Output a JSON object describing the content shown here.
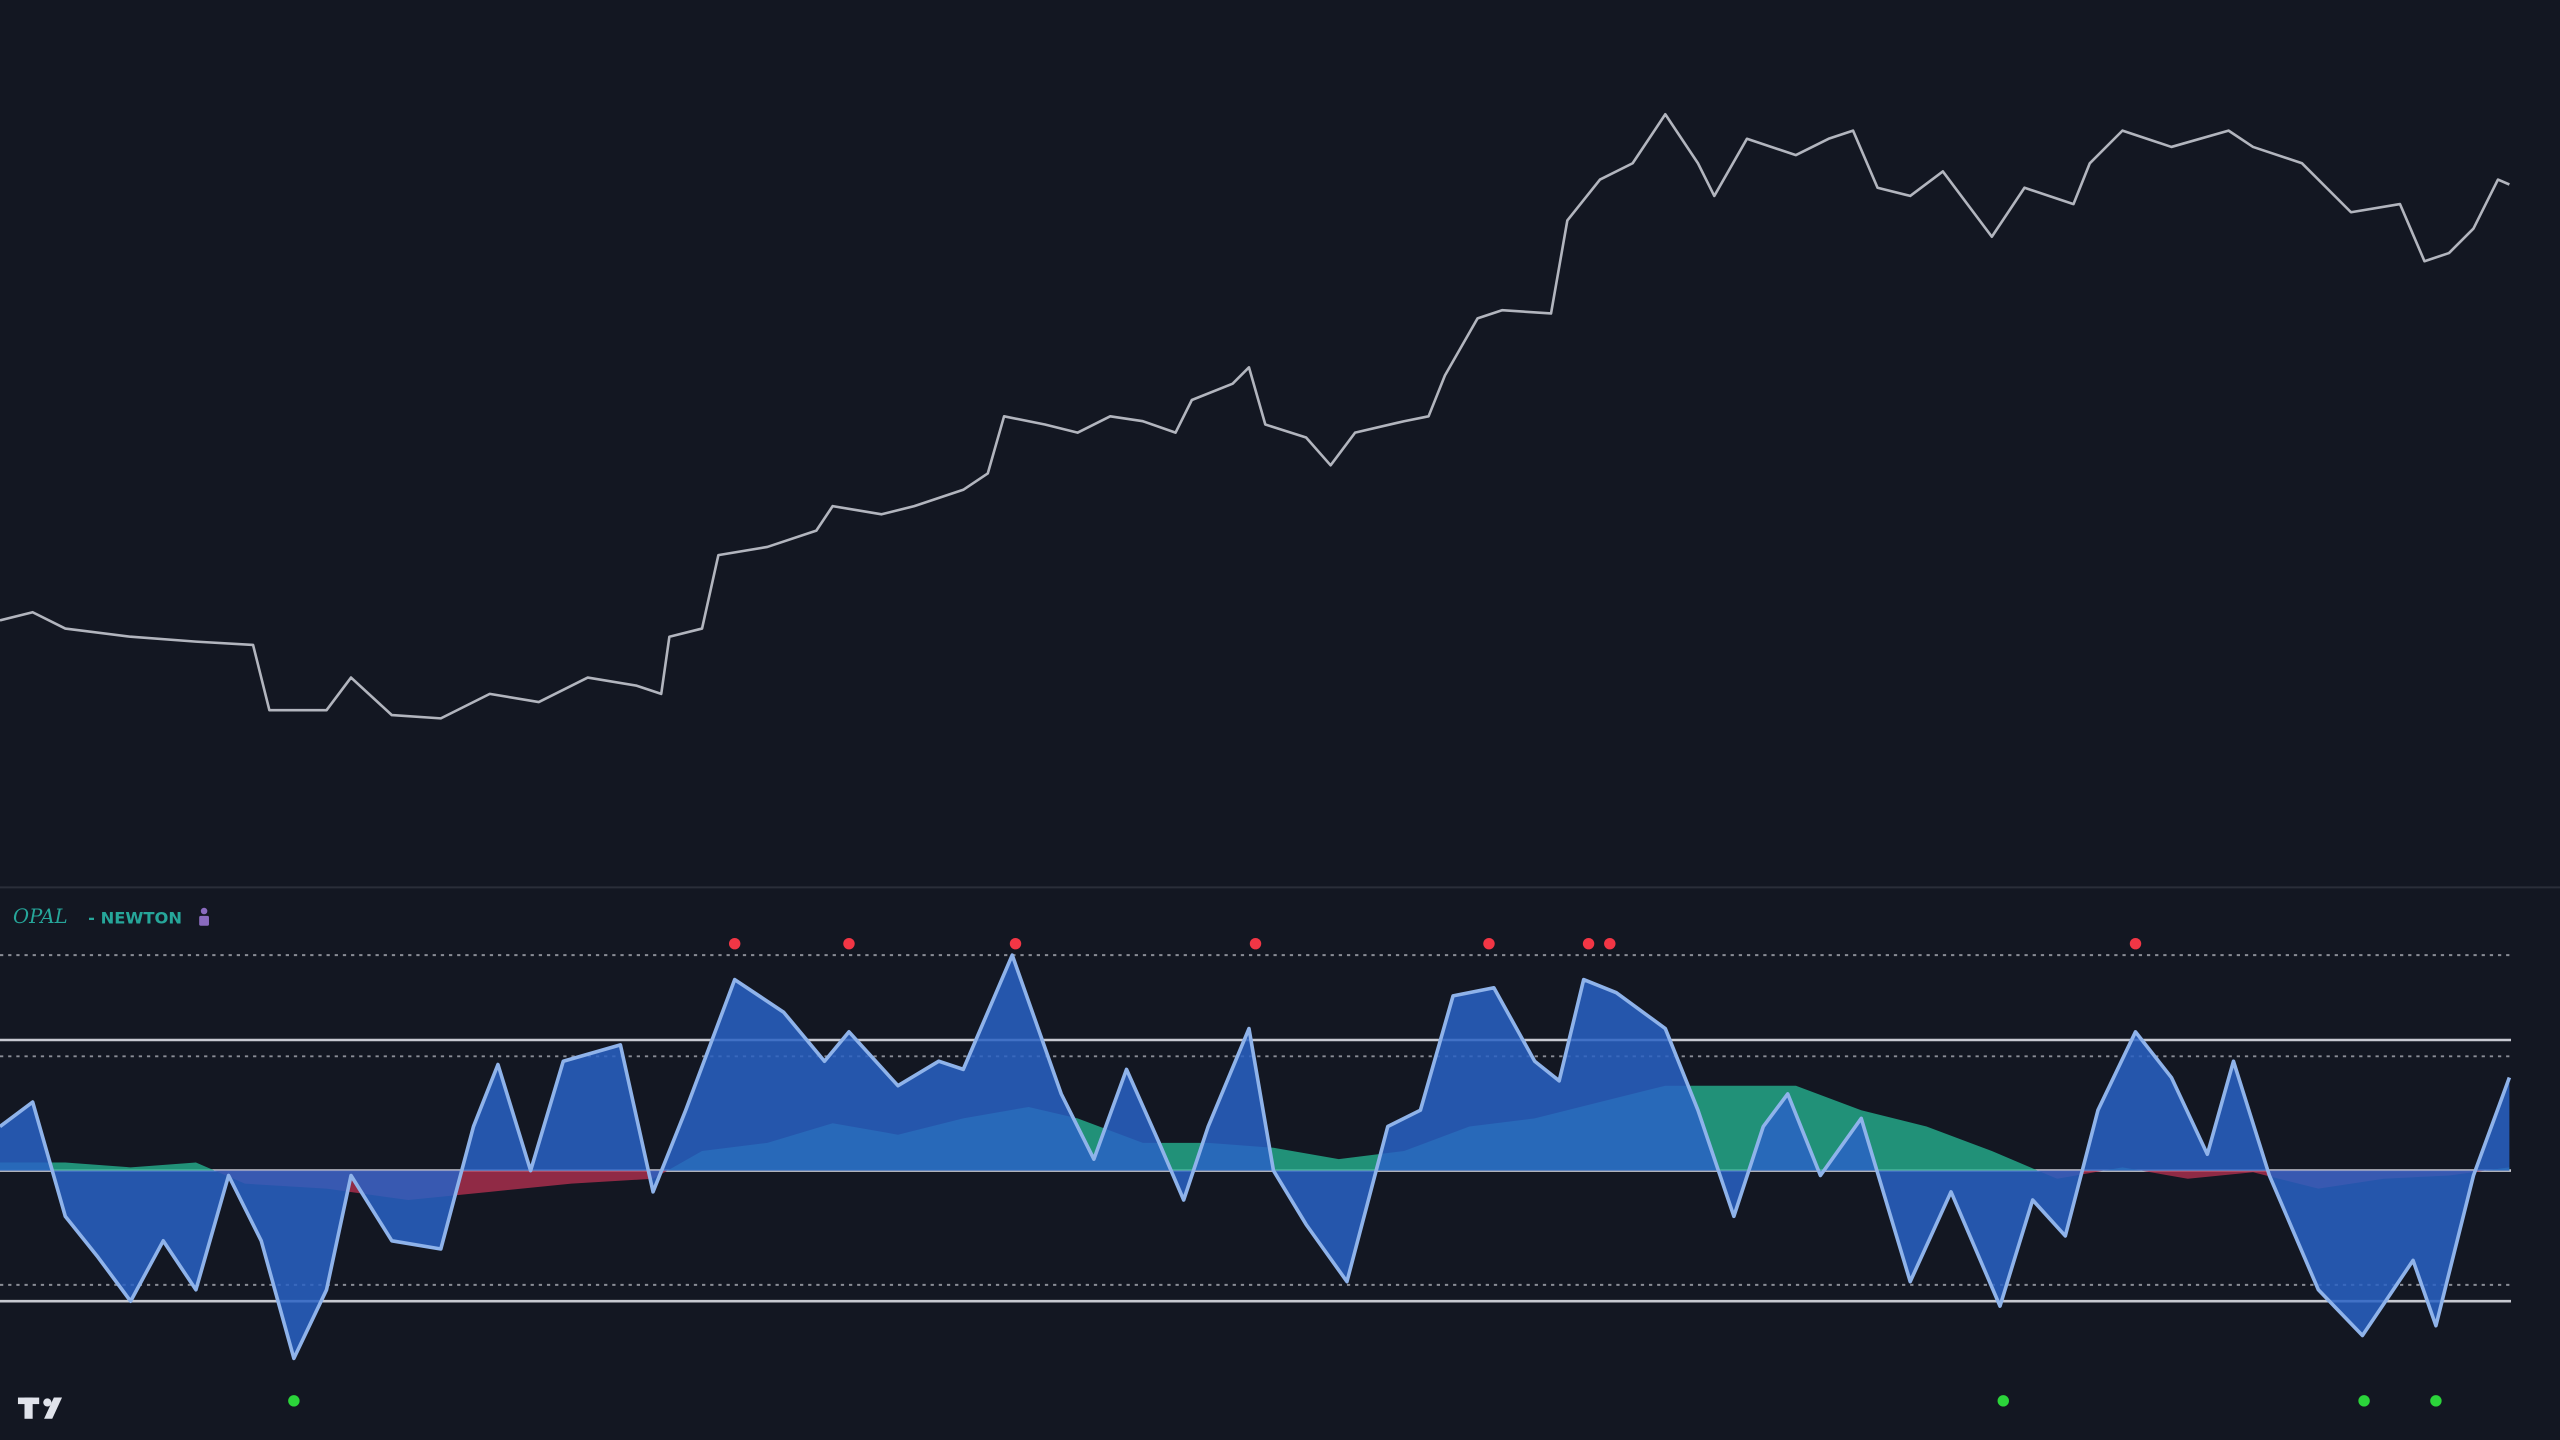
{
  "chart_data": [
    {
      "type": "line",
      "color": "#b2b5be",
      "x": [
        0,
        20,
        40,
        80,
        120,
        155,
        165,
        200,
        215,
        240,
        270,
        300,
        330,
        360,
        390,
        405,
        410,
        430,
        440,
        470,
        500,
        510,
        540,
        560,
        590,
        605,
        615,
        640,
        660,
        680,
        700,
        720,
        730,
        755,
        765,
        775,
        800,
        815,
        830,
        860,
        875,
        885,
        905,
        920,
        950,
        960,
        980,
        1000,
        1020,
        1040,
        1050,
        1070,
        1100,
        1120,
        1135,
        1150,
        1170,
        1190,
        1220,
        1240,
        1270,
        1280,
        1300,
        1330,
        1365,
        1380,
        1410,
        1440,
        1470,
        1485,
        1500,
        1515,
        1530,
        1537
      ],
      "values": [
        160,
        165,
        155,
        150,
        147,
        145,
        105,
        105,
        125,
        102,
        100,
        115,
        110,
        125,
        120,
        115,
        150,
        155,
        200,
        205,
        215,
        230,
        225,
        230,
        240,
        250,
        285,
        280,
        275,
        285,
        282,
        275,
        295,
        305,
        315,
        280,
        272,
        255,
        275,
        282,
        285,
        310,
        345,
        350,
        348,
        405,
        430,
        440,
        470,
        440,
        420,
        455,
        445,
        455,
        460,
        425,
        420,
        435,
        395,
        425,
        415,
        440,
        460,
        450,
        460,
        450,
        440,
        410,
        415,
        380,
        385,
        400,
        430,
        427
      ],
      "xlim": [
        0,
        1568
      ],
      "ylim": [
        -3,
        540
      ]
    },
    {
      "type": "oscillator",
      "indicator": "OPAL",
      "indicator_mode": "- NEWTON",
      "x": [
        0,
        20,
        40,
        60,
        80,
        100,
        120,
        140,
        160,
        180,
        200,
        215,
        240,
        270,
        290,
        305,
        325,
        345,
        380,
        400,
        420,
        450,
        480,
        505,
        520,
        550,
        575,
        590,
        620,
        650,
        670,
        690,
        710,
        725,
        740,
        765,
        780,
        800,
        825,
        850,
        870,
        890,
        915,
        940,
        955,
        970,
        990,
        1020,
        1040,
        1062,
        1080,
        1095,
        1115,
        1140,
        1170,
        1195,
        1225,
        1245,
        1265,
        1285,
        1308,
        1330,
        1352,
        1368,
        1390,
        1420,
        1447,
        1478,
        1492,
        1515,
        1537
      ],
      "values": [
        27,
        42,
        -28,
        -53,
        -80,
        -43,
        -73,
        -3,
        -43,
        -115,
        -73,
        -3,
        -43,
        -48,
        27,
        65,
        0,
        67,
        77,
        -13,
        37,
        117,
        97,
        67,
        85,
        52,
        67,
        62,
        132,
        47,
        7,
        62,
        17,
        -18,
        27,
        87,
        0,
        -33,
        -68,
        27,
        37,
        107,
        112,
        67,
        55,
        117,
        109,
        87,
        37,
        -28,
        27,
        47,
        -3,
        32,
        -68,
        -13,
        -83,
        -18,
        -40,
        37,
        85,
        57,
        10,
        67,
        -3,
        -73,
        -101,
        -55,
        -95,
        -3,
        57
      ],
      "color": "#2962c4",
      "line_color": "#8fb3ea",
      "momentum": {
        "x": [
          0,
          40,
          80,
          120,
          150,
          200,
          250,
          300,
          350,
          400,
          430,
          470,
          510,
          550,
          590,
          630,
          660,
          700,
          740,
          780,
          820,
          860,
          900,
          940,
          980,
          1020,
          1060,
          1100,
          1140,
          1180,
          1220,
          1260,
          1300,
          1340,
          1380,
          1420,
          1460,
          1500,
          1537
        ],
        "values": [
          5,
          5,
          2,
          5,
          -8,
          -11,
          -18,
          -13,
          -8,
          -5,
          12,
          17,
          29,
          22,
          32,
          39,
          32,
          17,
          17,
          14,
          7,
          12,
          27,
          32,
          42,
          52,
          52,
          52,
          37,
          27,
          12,
          -5,
          2,
          -5,
          -1,
          -11,
          -5,
          -3,
          2
        ],
        "positive_color": "#26b08f",
        "negative_color": "#b0304f"
      },
      "levels": [
        {
          "value": 132,
          "style": "dotted"
        },
        {
          "value": 80,
          "style": "solid"
        },
        {
          "value": 70,
          "style": "dotted"
        },
        {
          "value": 0,
          "style": "solid"
        },
        {
          "value": -70,
          "style": "dotted"
        },
        {
          "value": -80,
          "style": "solid"
        }
      ],
      "top_signals": {
        "x": [
          450,
          520,
          622,
          769,
          912,
          973,
          986,
          1308
        ],
        "value": 139,
        "color": "#f23645"
      },
      "bottom_signals": {
        "x": [
          180,
          1227,
          1448,
          1492
        ],
        "value": -141,
        "color": "#2bd43a"
      },
      "xlim": [
        0,
        1568
      ],
      "ylim": [
        -165,
        170
      ]
    }
  ]
}
